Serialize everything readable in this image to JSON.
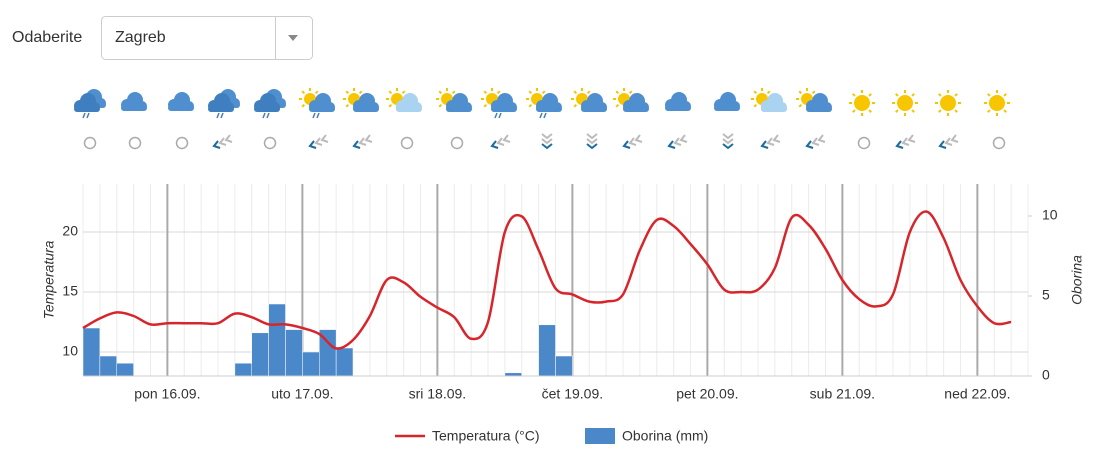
{
  "dropdown": {
    "label": "Odaberite",
    "selected": "Zagreb"
  },
  "chart_data": {
    "type": "combo",
    "categories": [
      null,
      null,
      null,
      null,
      null,
      "pon 16.09.",
      null,
      null,
      null,
      null,
      null,
      null,
      null,
      "uto 17.09.",
      null,
      null,
      null,
      null,
      null,
      null,
      null,
      "sri 18.09.",
      null,
      null,
      null,
      null,
      null,
      null,
      null,
      "čet 19.09.",
      null,
      null,
      null,
      null,
      null,
      null,
      null,
      "pet 20.09.",
      null,
      null,
      null,
      null,
      null,
      null,
      null,
      "sub 21.09.",
      null,
      null,
      null,
      null,
      null,
      null,
      null,
      "ned 22.09.",
      null,
      null
    ],
    "series": [
      {
        "name": "Temperatura (°C)",
        "type": "line",
        "color": "#d7262b",
        "values": [
          12.0,
          12.8,
          13.3,
          13.0,
          12.3,
          12.4,
          12.4,
          12.4,
          12.4,
          13.2,
          12.9,
          12.3,
          12.3,
          12.0,
          11.5,
          10.3,
          11.0,
          13.0,
          16.0,
          15.8,
          14.6,
          13.7,
          12.9,
          11.1,
          12.5,
          20.0,
          21.3,
          18.5,
          15.3,
          14.8,
          14.2,
          14.2,
          14.8,
          18.5,
          21.0,
          20.5,
          19.0,
          17.3,
          15.2,
          15.0,
          15.2,
          17.0,
          21.2,
          20.6,
          18.6,
          16.0,
          14.4,
          13.8,
          14.8,
          20.0,
          21.7,
          19.5,
          16.0,
          13.8,
          12.4,
          12.5
        ]
      },
      {
        "name": "Oborina (mm)",
        "type": "bar",
        "axis": "y2",
        "color": "#4a88c9",
        "values": [
          3.0,
          1.25,
          0.8,
          0,
          0,
          0,
          0,
          0,
          0,
          0.8,
          2.7,
          4.5,
          2.9,
          1.5,
          2.9,
          1.75,
          0,
          0,
          0,
          0,
          0,
          0,
          0,
          0,
          0,
          0.2,
          0,
          3.2,
          1.25,
          0,
          0,
          0,
          0,
          0,
          0,
          0,
          0,
          0,
          0,
          0,
          0,
          0,
          0,
          0,
          0,
          0,
          0,
          0,
          0,
          0,
          0,
          0,
          0,
          0,
          0,
          0
        ]
      }
    ],
    "ylabel": "Temperatura",
    "y2label": "Oborina",
    "ylim": [
      8,
      24
    ],
    "yticks": [
      10,
      15,
      20
    ],
    "y2lim": [
      0,
      12
    ],
    "y2ticks": [
      0,
      5,
      10
    ],
    "grid": true,
    "legend": "bottom"
  }
}
